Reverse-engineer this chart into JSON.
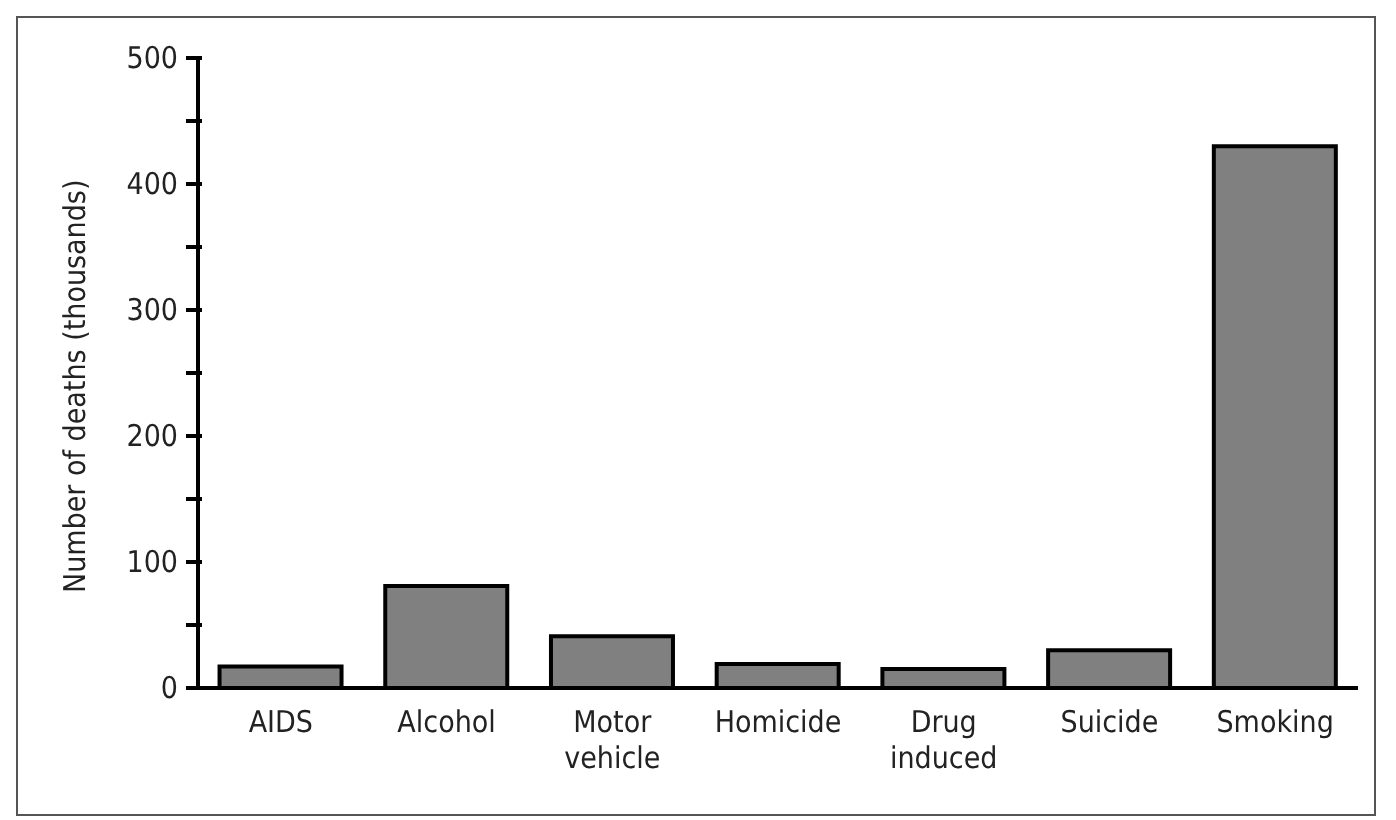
{
  "chart_data": {
    "type": "bar",
    "ylabel": "Number of deaths (thousands)",
    "categories": [
      "AIDS",
      "Alcohol",
      "Motor vehicle",
      "Homicide",
      "Drug induced",
      "Suicide",
      "Smoking"
    ],
    "values": [
      17,
      81,
      41,
      19,
      15,
      30,
      430
    ],
    "color": "#808080",
    "ylim": [
      0,
      500
    ],
    "yticks": [
      0,
      {
        "value": 50,
        "label": null
      },
      100,
      {
        "value": 150,
        "label": null
      },
      200,
      {
        "value": 250,
        "label": null
      },
      300,
      {
        "value": 350,
        "label": null
      },
      400,
      {
        "value": 450,
        "label": null
      },
      500
    ],
    "grid": false
  }
}
